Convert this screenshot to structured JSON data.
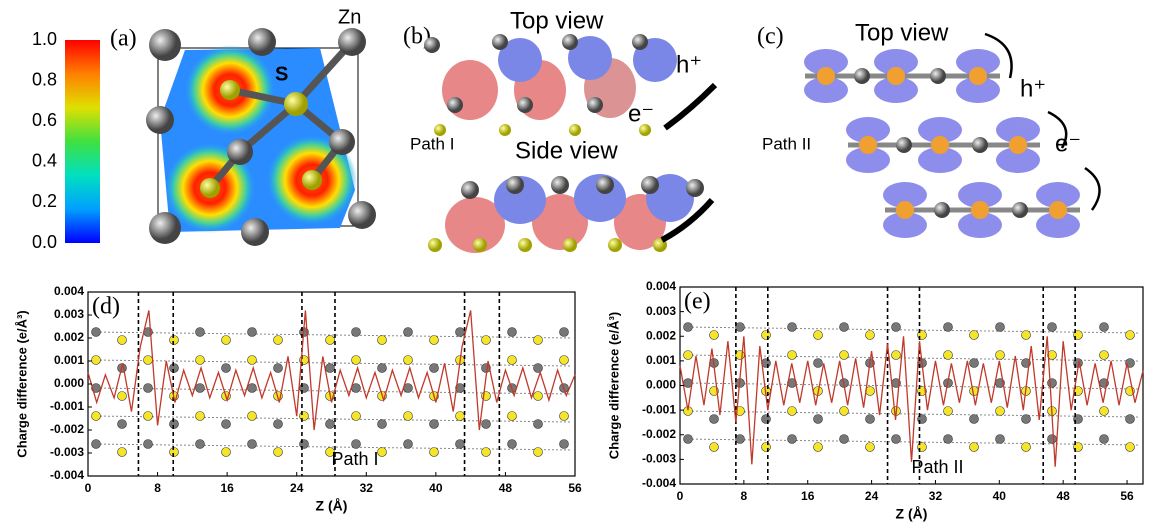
{
  "chart_data": [
    {
      "type": "colorbar",
      "ylim": [
        0,
        1
      ],
      "yticks": [
        {
          "value": 0,
          "label": "0.0"
        },
        0.2,
        0.4,
        0.6,
        0.8,
        {
          "value": 1,
          "label": "1.0"
        }
      ],
      "colors": [
        "#0000ff",
        "#00a0ff",
        "#00e0c0",
        "#40e040",
        "#e0e000",
        "#ff8000",
        "#ff0000"
      ]
    },
    {
      "type": "line",
      "panel_label": "(d)",
      "xlabel": "Z (Å)",
      "ylabel": "Charge difference (e/Å³)",
      "annotation": "Path I",
      "x": [
        0,
        1,
        2,
        3,
        4,
        5,
        6,
        7,
        8,
        9,
        10,
        11,
        12,
        13,
        14,
        15,
        16,
        17,
        18,
        19,
        20,
        21,
        22,
        23,
        24,
        25,
        26,
        27,
        28,
        29,
        30,
        31,
        32,
        33,
        34,
        35,
        36,
        37,
        38,
        39,
        40,
        41,
        42,
        43,
        44,
        45,
        46,
        47,
        48,
        49,
        50,
        51,
        52,
        53,
        54,
        55,
        56
      ],
      "series": [
        {
          "color": "#c0392b",
          "values": [
            0.0005,
            -0.0008,
            0.0004,
            -0.0006,
            0.0009,
            -0.0012,
            0.0016,
            0.0032,
            -0.0018,
            0.001,
            -0.0008,
            0.0006,
            -0.0005,
            0.0007,
            -0.0006,
            0.0005,
            -0.0007,
            0.0006,
            -0.0005,
            0.0007,
            -0.0006,
            0.0005,
            -0.0008,
            0.0012,
            -0.0014,
            0.0032,
            -0.002,
            0.0012,
            -0.0008,
            0.0006,
            -0.0005,
            0.0007,
            -0.0006,
            0.0005,
            -0.0007,
            0.0006,
            -0.0005,
            0.0007,
            -0.0006,
            0.0005,
            -0.0008,
            0.0009,
            -0.0012,
            0.0016,
            0.0032,
            -0.002,
            0.001,
            -0.0008,
            0.0006,
            -0.0005,
            0.0007,
            -0.0006,
            0.0005,
            -0.0007,
            0.0006,
            -0.0005,
            0.0004
          ]
        }
      ],
      "vlines": [
        5.8,
        9.8,
        24.6,
        28.4,
        43.3,
        47.3
      ],
      "xlim": [
        0,
        56
      ],
      "xticks": [
        0,
        8,
        16,
        24,
        32,
        40,
        48,
        56
      ],
      "ylim": [
        -0.004,
        0.004
      ],
      "yticks": [
        -0.004,
        -0.003,
        -0.002,
        -0.001,
        {
          "value": 0,
          "label": "0.000"
        },
        0.001,
        0.002,
        0.003,
        0.004
      ]
    },
    {
      "type": "line",
      "panel_label": "(e)",
      "xlabel": "Z (Å)",
      "ylabel": "Charge difference (e/Å³)",
      "annotation": "Path II",
      "x": [
        0,
        1,
        2,
        3,
        4,
        5,
        6,
        7,
        8,
        9,
        10,
        11,
        12,
        13,
        14,
        15,
        16,
        17,
        18,
        19,
        20,
        21,
        22,
        23,
        24,
        25,
        26,
        27,
        28,
        29,
        30,
        31,
        32,
        33,
        34,
        35,
        36,
        37,
        38,
        39,
        40,
        41,
        42,
        43,
        44,
        45,
        46,
        47,
        48,
        49,
        50,
        51,
        52,
        53,
        54,
        55,
        56,
        57,
        58
      ],
      "series": [
        {
          "color": "#c0392b",
          "values": [
            0.0008,
            -0.001,
            0.0012,
            -0.0008,
            0.0015,
            -0.0012,
            0.0018,
            -0.0015,
            0.002,
            -0.0032,
            0.0016,
            -0.001,
            0.001,
            -0.0008,
            0.0009,
            -0.0007,
            0.001,
            -0.0008,
            0.0009,
            -0.0007,
            0.001,
            -0.0008,
            0.0011,
            -0.0009,
            0.0014,
            -0.0012,
            0.0017,
            -0.0014,
            0.002,
            -0.0031,
            0.0018,
            -0.001,
            0.001,
            -0.0008,
            0.0009,
            -0.0007,
            0.001,
            -0.0008,
            0.0009,
            -0.0007,
            0.001,
            -0.0009,
            0.0012,
            -0.001,
            0.0016,
            -0.0014,
            0.002,
            -0.0033,
            0.0018,
            -0.001,
            0.001,
            -0.0008,
            0.0009,
            -0.0007,
            0.001,
            -0.0008,
            0.0009,
            -0.0007,
            0.0006
          ]
        }
      ],
      "vlines": [
        7,
        11,
        26,
        30,
        45.5,
        49.5
      ],
      "xlim": [
        0,
        58
      ],
      "xticks": [
        0,
        8,
        16,
        24,
        32,
        40,
        48,
        56
      ],
      "ylim": [
        -0.004,
        0.004
      ],
      "yticks": [
        -0.004,
        -0.003,
        -0.002,
        -0.001,
        {
          "value": 0,
          "label": "0.000"
        },
        0.001,
        0.002,
        0.003,
        0.004
      ]
    }
  ],
  "panel_a": {
    "label": "(a)",
    "atom_s": "S",
    "atom_zn": "Zn"
  },
  "panel_b": {
    "label": "(b)",
    "top": "Top view",
    "side": "Side view",
    "hole": "h⁺",
    "electron": "e⁻",
    "path": "Path I"
  },
  "panel_c": {
    "label": "(c)",
    "top": "Top view",
    "hole": "h⁺",
    "electron": "e⁻",
    "path": "Path II"
  }
}
